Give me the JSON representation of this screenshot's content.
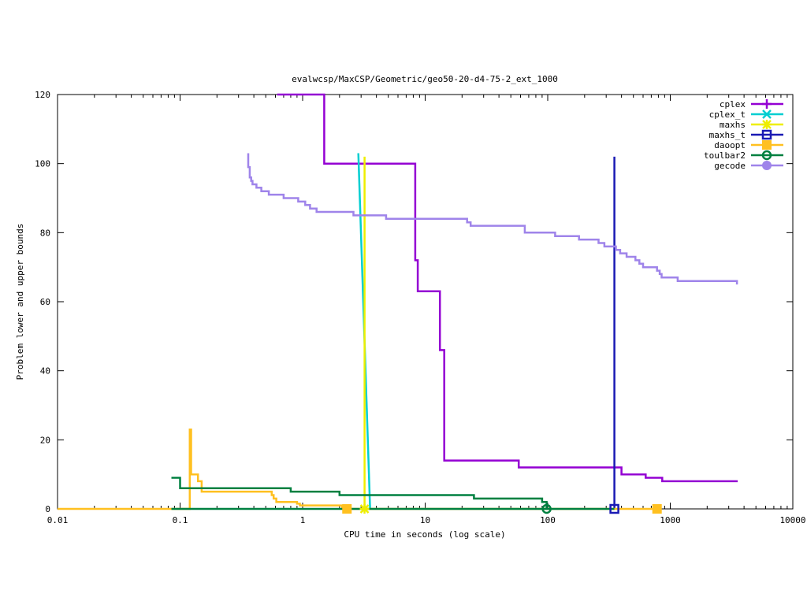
{
  "chart_data": {
    "type": "line",
    "title": "evalwcsp/MaxCSP/Geometric/geo50-20-d4-75-2_ext_1000",
    "xlabel": "CPU time in seconds (log scale)",
    "ylabel": "Problem lower and upper bounds",
    "x_scale": "log",
    "xlim": [
      0.01,
      10000
    ],
    "ylim": [
      0,
      120
    ],
    "x_ticks": [
      "0.01",
      "0.1",
      "1",
      "10",
      "100",
      "1000",
      "10000"
    ],
    "y_ticks": [
      "0",
      "20",
      "40",
      "60",
      "80",
      "100",
      "120"
    ],
    "legend_position": "top-right",
    "grid": false,
    "series": [
      {
        "name": "cplex",
        "color": "#9400d3",
        "marker": "plus",
        "x": [
          0.62,
          1.5,
          1.5,
          8.3,
          8.3,
          8.7,
          8.7,
          13.2,
          13.2,
          14.3,
          14.3,
          58,
          58,
          400,
          400,
          630,
          630,
          860,
          860,
          3550
        ],
        "y": [
          120,
          120,
          100,
          100,
          72,
          72,
          63,
          63,
          46,
          46,
          14,
          14,
          12,
          12,
          10,
          10,
          9,
          9,
          8,
          8
        ]
      },
      {
        "name": "cplex_t",
        "color": "#00ced1",
        "marker": "x",
        "x": [
          2.85,
          3.55
        ],
        "y": [
          103,
          0
        ]
      },
      {
        "name": "maxhs",
        "color": "#eeee00",
        "marker": "star",
        "x": [
          3.2,
          3.2,
          3.2
        ],
        "y": [
          102,
          0,
          0
        ]
      },
      {
        "name": "maxhs_t",
        "color": "#1a1ab4",
        "marker": "open-square",
        "x": [
          350,
          350,
          350
        ],
        "y": [
          102,
          0,
          0
        ]
      },
      {
        "name": "daoopt",
        "color": "#ffc020",
        "marker": "filled-square",
        "x": [
          0.01,
          0.12,
          0.12,
          0.123,
          0.123,
          0.14,
          0.14,
          0.15,
          0.15,
          0.56,
          0.56,
          0.58,
          0.58,
          0.61,
          0.61,
          0.9,
          0.9,
          0.95,
          0.95,
          2.1,
          2.1,
          2.3,
          2.3,
          780
        ],
        "y": [
          0,
          0,
          23,
          23,
          10,
          10,
          8,
          8,
          5,
          5,
          4,
          4,
          3,
          3,
          2,
          2,
          1.5,
          1.5,
          1,
          1,
          0.5,
          0.5,
          0,
          0
        ]
      },
      {
        "name": "toulbar2",
        "color": "#008040",
        "marker": "open-circle",
        "x": [
          0.085,
          0.1,
          0.1,
          0.8,
          0.8,
          2,
          2,
          25,
          25,
          90,
          90,
          98,
          98
        ],
        "y": [
          9,
          9,
          6,
          6,
          5,
          5,
          4,
          4,
          3,
          3,
          2,
          2,
          0
        ]
      },
      {
        "name": "toulbar2-lower",
        "color": "#008040",
        "marker": "none",
        "x": [
          0.085,
          350
        ],
        "y": [
          0,
          0
        ]
      },
      {
        "name": "gecode",
        "color": "#9f84ea",
        "marker": "filled-circle",
        "x": [
          0.36,
          0.36,
          0.37,
          0.37,
          0.38,
          0.38,
          0.39,
          0.39,
          0.42,
          0.42,
          0.46,
          0.46,
          0.53,
          0.53,
          0.7,
          0.7,
          0.92,
          0.92,
          1.05,
          1.05,
          1.15,
          1.15,
          1.3,
          1.3,
          2.6,
          2.6,
          3.2,
          3.2,
          3.9,
          3.9,
          4.8,
          4.8,
          22,
          22,
          23.5,
          23.5,
          65,
          65,
          100,
          100,
          115,
          115,
          180,
          180,
          260,
          260,
          290,
          290,
          310,
          310,
          360,
          360,
          390,
          390,
          440,
          440,
          520,
          520,
          560,
          560,
          600,
          600,
          780,
          780,
          820,
          820,
          850,
          850,
          1150,
          1150,
          2500,
          2500,
          3500,
          3500
        ],
        "y": [
          103,
          99,
          99,
          96,
          96,
          95,
          95,
          94,
          94,
          93,
          93,
          92,
          92,
          91,
          91,
          90,
          90,
          89,
          89,
          88,
          88,
          87,
          87,
          86,
          86,
          85,
          85,
          85,
          85,
          85,
          85,
          84,
          84,
          83,
          83,
          82,
          82,
          80,
          80,
          80,
          80,
          79,
          79,
          78,
          78,
          77,
          77,
          76,
          76,
          76,
          76,
          75,
          75,
          74,
          74,
          73,
          73,
          72,
          72,
          71,
          71,
          70,
          70,
          69,
          69,
          68,
          68,
          67,
          67,
          66,
          66,
          66,
          66,
          65
        ]
      }
    ],
    "legend_entries": [
      "cplex",
      "cplex_t",
      "maxhs",
      "maxhs_t",
      "daoopt",
      "toulbar2",
      "gecode"
    ],
    "markers": [
      {
        "series": "maxhs",
        "x": 3.2,
        "y": 0
      },
      {
        "series": "daoopt",
        "x": 2.3,
        "y": 0
      },
      {
        "series": "daoopt",
        "x": 780,
        "y": 0
      },
      {
        "series": "toulbar2",
        "x": 98,
        "y": 0
      },
      {
        "series": "maxhs_t",
        "x": 350,
        "y": 0
      }
    ]
  }
}
